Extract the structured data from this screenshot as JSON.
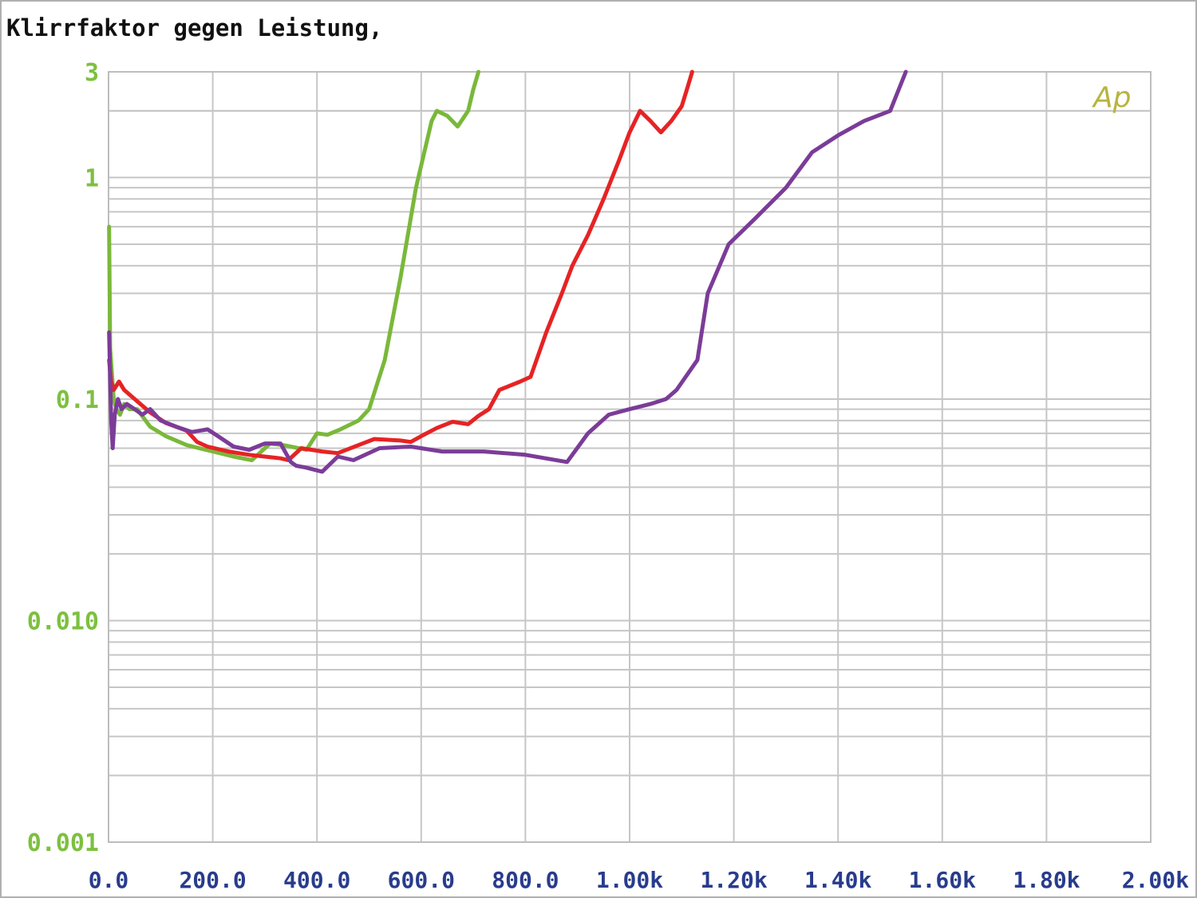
{
  "chart_data": {
    "type": "line",
    "title": "Klirrfaktor gegen Leistung,",
    "xlabel": "",
    "ylabel": "",
    "x_scale": "linear",
    "y_scale": "log",
    "xlim": [
      0,
      2000
    ],
    "ylim": [
      0.001,
      3
    ],
    "grid": true,
    "x_tick_values": [
      0,
      200,
      400,
      600,
      800,
      1000,
      1200,
      1400,
      1600,
      1800,
      2000
    ],
    "x_tick_labels": [
      "0.0",
      "200.0",
      "400.0",
      "600.0",
      "800.0",
      "1.00k",
      "1.20k",
      "1.40k",
      "1.60k",
      "1.80k",
      "2.00k"
    ],
    "y_tick_values": [
      3,
      1,
      0.1,
      0.01,
      0.001
    ],
    "y_tick_labels": [
      "3",
      "1",
      "0.1",
      "0.010",
      "0.001"
    ],
    "brand_mark": "Ap",
    "series": [
      {
        "color": "#7ab83a",
        "x": [
          1,
          3,
          10,
          15,
          22,
          30,
          40,
          55,
          80,
          110,
          150,
          200,
          240,
          275,
          310,
          335,
          365,
          380,
          400,
          420,
          445,
          480,
          500,
          530,
          560,
          590,
          620,
          630,
          650,
          670,
          690,
          700,
          710
        ],
        "y": [
          0.6,
          0.17,
          0.1,
          0.09,
          0.085,
          0.095,
          0.09,
          0.09,
          0.075,
          0.068,
          0.062,
          0.058,
          0.055,
          0.053,
          0.063,
          0.062,
          0.06,
          0.059,
          0.07,
          0.069,
          0.073,
          0.08,
          0.09,
          0.15,
          0.35,
          0.9,
          1.8,
          2.0,
          1.9,
          1.7,
          2.0,
          2.5,
          3.0
        ]
      },
      {
        "color": "#e62324",
        "x": [
          1,
          5,
          10,
          20,
          30,
          50,
          80,
          110,
          150,
          170,
          190,
          230,
          270,
          300,
          330,
          345,
          370,
          410,
          440,
          480,
          510,
          560,
          580,
          600,
          630,
          660,
          690,
          710,
          730,
          750,
          790,
          810,
          840,
          870,
          890,
          920,
          950,
          980,
          1000,
          1020,
          1040,
          1060,
          1080,
          1100,
          1110,
          1120
        ],
        "y": [
          0.15,
          0.12,
          0.11,
          0.12,
          0.11,
          0.1,
          0.087,
          0.078,
          0.072,
          0.064,
          0.061,
          0.058,
          0.056,
          0.055,
          0.054,
          0.053,
          0.06,
          0.058,
          0.057,
          0.062,
          0.066,
          0.065,
          0.064,
          0.068,
          0.074,
          0.079,
          0.077,
          0.084,
          0.09,
          0.11,
          0.12,
          0.126,
          0.2,
          0.3,
          0.4,
          0.55,
          0.8,
          1.2,
          1.6,
          2.0,
          1.8,
          1.6,
          1.8,
          2.1,
          2.5,
          3.0
        ]
      },
      {
        "color": "#7b3c98",
        "x": [
          1,
          5,
          8,
          12,
          18,
          25,
          35,
          50,
          65,
          80,
          100,
          130,
          160,
          190,
          210,
          240,
          270,
          300,
          330,
          350,
          360,
          380,
          410,
          440,
          470,
          520,
          580,
          640,
          720,
          800,
          880,
          920,
          960,
          1000,
          1040,
          1070,
          1090,
          1130,
          1150,
          1190,
          1240,
          1300,
          1350,
          1400,
          1450,
          1500,
          1530
        ],
        "y": [
          0.2,
          0.08,
          0.06,
          0.085,
          0.1,
          0.09,
          0.095,
          0.09,
          0.085,
          0.09,
          0.08,
          0.075,
          0.071,
          0.073,
          0.068,
          0.061,
          0.059,
          0.063,
          0.063,
          0.052,
          0.05,
          0.049,
          0.047,
          0.055,
          0.053,
          0.06,
          0.061,
          0.058,
          0.058,
          0.056,
          0.052,
          0.07,
          0.085,
          0.09,
          0.095,
          0.1,
          0.11,
          0.15,
          0.3,
          0.5,
          0.65,
          0.9,
          1.3,
          1.55,
          1.8,
          2.0,
          3.0
        ]
      }
    ]
  }
}
